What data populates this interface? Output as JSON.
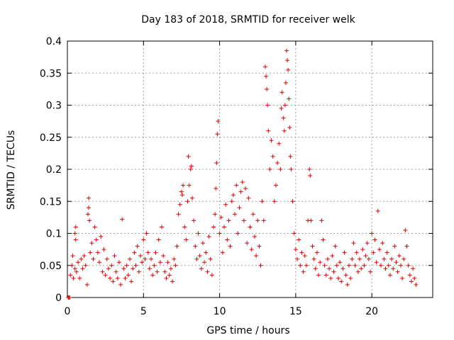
{
  "chart_data": {
    "type": "scatter",
    "title": "Day 183 of 2018, SRMTID for receiver welk",
    "xlabel": "GPS time / hours",
    "ylabel": "SRMTID / TECUs",
    "xlim": [
      0,
      24
    ],
    "ylim": [
      0,
      0.4
    ],
    "x_ticks": [
      0,
      5,
      10,
      15,
      20
    ],
    "x_tick_labels": [
      "0",
      "5",
      "10",
      "15",
      "20"
    ],
    "y_ticks": [
      0,
      0.05,
      0.1,
      0.15,
      0.2,
      0.25,
      0.3,
      0.35,
      0.4
    ],
    "y_tick_labels": [
      "0",
      "0.05",
      "0.1",
      "0.15",
      "0.2",
      "0.25",
      "0.3",
      "0.35",
      "0.4"
    ],
    "grid": true,
    "marker": "+",
    "color": "#e00000",
    "series": [
      {
        "name": "SRMTID",
        "points": [
          [
            0.05,
            0.0
          ],
          [
            0.1,
            0.0
          ],
          [
            0.15,
            0.0
          ],
          [
            0.2,
            0.035
          ],
          [
            0.3,
            0.05
          ],
          [
            0.35,
            0.065
          ],
          [
            0.4,
            0.03
          ],
          [
            0.5,
            0.045
          ],
          [
            0.5,
            0.1
          ],
          [
            0.55,
            0.09
          ],
          [
            0.55,
            0.11
          ],
          [
            0.6,
            0.04
          ],
          [
            0.7,
            0.055
          ],
          [
            0.8,
            0.03
          ],
          [
            0.9,
            0.06
          ],
          [
            1.0,
            0.045
          ],
          [
            1.1,
            0.065
          ],
          [
            1.2,
            0.05
          ],
          [
            1.3,
            0.02
          ],
          [
            1.35,
            0.13
          ],
          [
            1.4,
            0.155
          ],
          [
            1.4,
            0.14
          ],
          [
            1.45,
            0.12
          ],
          [
            1.5,
            0.07
          ],
          [
            1.6,
            0.085
          ],
          [
            1.7,
            0.06
          ],
          [
            1.8,
            0.11
          ],
          [
            1.9,
            0.09
          ],
          [
            2.0,
            0.07
          ],
          [
            2.1,
            0.055
          ],
          [
            2.2,
            0.095
          ],
          [
            2.3,
            0.04
          ],
          [
            2.4,
            0.075
          ],
          [
            2.5,
            0.035
          ],
          [
            2.6,
            0.06
          ],
          [
            2.7,
            0.045
          ],
          [
            2.8,
            0.03
          ],
          [
            2.9,
            0.05
          ],
          [
            3.0,
            0.025
          ],
          [
            3.1,
            0.065
          ],
          [
            3.2,
            0.04
          ],
          [
            3.3,
            0.03
          ],
          [
            3.4,
            0.055
          ],
          [
            3.5,
            0.02
          ],
          [
            3.6,
            0.122
          ],
          [
            3.7,
            0.045
          ],
          [
            3.8,
            0.03
          ],
          [
            3.9,
            0.05
          ],
          [
            4.0,
            0.035
          ],
          [
            4.1,
            0.06
          ],
          [
            4.2,
            0.025
          ],
          [
            4.3,
            0.045
          ],
          [
            4.4,
            0.07
          ],
          [
            4.5,
            0.05
          ],
          [
            4.6,
            0.08
          ],
          [
            4.7,
            0.04
          ],
          [
            4.8,
            0.065
          ],
          [
            4.9,
            0.055
          ],
          [
            5.0,
            0.09
          ],
          [
            5.1,
            0.06
          ],
          [
            5.2,
            0.1
          ],
          [
            5.3,
            0.07
          ],
          [
            5.4,
            0.045
          ],
          [
            5.5,
            0.06
          ],
          [
            5.6,
            0.035
          ],
          [
            5.7,
            0.05
          ],
          [
            5.8,
            0.07
          ],
          [
            5.9,
            0.04
          ],
          [
            6.0,
            0.09
          ],
          [
            6.1,
            0.055
          ],
          [
            6.2,
            0.11
          ],
          [
            6.3,
            0.065
          ],
          [
            6.4,
            0.04
          ],
          [
            6.5,
            0.03
          ],
          [
            6.6,
            0.055
          ],
          [
            6.7,
            0.035
          ],
          [
            6.8,
            0.045
          ],
          [
            6.9,
            0.025
          ],
          [
            7.0,
            0.06
          ],
          [
            7.1,
            0.05
          ],
          [
            7.2,
            0.08
          ],
          [
            7.3,
            0.13
          ],
          [
            7.4,
            0.145
          ],
          [
            7.5,
            0.165
          ],
          [
            7.55,
            0.16
          ],
          [
            7.6,
            0.175
          ],
          [
            7.7,
            0.11
          ],
          [
            7.8,
            0.09
          ],
          [
            7.9,
            0.15
          ],
          [
            7.95,
            0.22
          ],
          [
            8.0,
            0.175
          ],
          [
            8.1,
            0.2
          ],
          [
            8.15,
            0.205
          ],
          [
            8.2,
            0.155
          ],
          [
            8.3,
            0.12
          ],
          [
            8.4,
            0.08
          ],
          [
            8.5,
            0.06
          ],
          [
            8.6,
            0.1
          ],
          [
            8.7,
            0.065
          ],
          [
            8.8,
            0.045
          ],
          [
            8.9,
            0.085
          ],
          [
            9.0,
            0.055
          ],
          [
            9.1,
            0.07
          ],
          [
            9.2,
            0.04
          ],
          [
            9.3,
            0.095
          ],
          [
            9.4,
            0.06
          ],
          [
            9.5,
            0.035
          ],
          [
            9.6,
            0.11
          ],
          [
            9.7,
            0.13
          ],
          [
            9.75,
            0.17
          ],
          [
            9.8,
            0.21
          ],
          [
            9.85,
            0.255
          ],
          [
            9.9,
            0.275
          ],
          [
            10.0,
            0.1
          ],
          [
            10.1,
            0.125
          ],
          [
            10.2,
            0.07
          ],
          [
            10.3,
            0.11
          ],
          [
            10.4,
            0.145
          ],
          [
            10.5,
            0.09
          ],
          [
            10.6,
            0.12
          ],
          [
            10.7,
            0.08
          ],
          [
            10.8,
            0.15
          ],
          [
            10.9,
            0.16
          ],
          [
            11.0,
            0.13
          ],
          [
            11.1,
            0.175
          ],
          [
            11.2,
            0.1
          ],
          [
            11.3,
            0.14
          ],
          [
            11.4,
            0.165
          ],
          [
            11.5,
            0.18
          ],
          [
            11.6,
            0.12
          ],
          [
            11.7,
            0.17
          ],
          [
            11.8,
            0.085
          ],
          [
            11.9,
            0.155
          ],
          [
            12.0,
            0.11
          ],
          [
            12.1,
            0.075
          ],
          [
            12.2,
            0.13
          ],
          [
            12.3,
            0.095
          ],
          [
            12.4,
            0.065
          ],
          [
            12.5,
            0.12
          ],
          [
            12.6,
            0.08
          ],
          [
            12.7,
            0.05
          ],
          [
            12.8,
            0.15
          ],
          [
            12.9,
            0.12
          ],
          [
            13.0,
            0.36
          ],
          [
            13.05,
            0.345
          ],
          [
            13.1,
            0.325
          ],
          [
            13.15,
            0.3
          ],
          [
            13.2,
            0.26
          ],
          [
            13.3,
            0.2
          ],
          [
            13.4,
            0.245
          ],
          [
            13.5,
            0.22
          ],
          [
            13.6,
            0.15
          ],
          [
            13.7,
            0.175
          ],
          [
            13.8,
            0.21
          ],
          [
            13.9,
            0.24
          ],
          [
            14.0,
            0.2
          ],
          [
            14.05,
            0.295
          ],
          [
            14.1,
            0.32
          ],
          [
            14.2,
            0.28
          ],
          [
            14.25,
            0.26
          ],
          [
            14.3,
            0.3
          ],
          [
            14.35,
            0.335
          ],
          [
            14.4,
            0.385
          ],
          [
            14.45,
            0.37
          ],
          [
            14.5,
            0.355
          ],
          [
            14.55,
            0.31
          ],
          [
            14.6,
            0.265
          ],
          [
            14.65,
            0.22
          ],
          [
            14.7,
            0.2
          ],
          [
            14.8,
            0.15
          ],
          [
            14.9,
            0.1
          ],
          [
            15.0,
            0.075
          ],
          [
            15.1,
            0.06
          ],
          [
            15.2,
            0.09
          ],
          [
            15.3,
            0.05
          ],
          [
            15.4,
            0.07
          ],
          [
            15.5,
            0.04
          ],
          [
            15.6,
            0.065
          ],
          [
            15.7,
            0.05
          ],
          [
            15.8,
            0.12
          ],
          [
            15.9,
            0.2
          ],
          [
            15.95,
            0.19
          ],
          [
            16.0,
            0.12
          ],
          [
            16.1,
            0.08
          ],
          [
            16.2,
            0.06
          ],
          [
            16.3,
            0.045
          ],
          [
            16.4,
            0.07
          ],
          [
            16.5,
            0.035
          ],
          [
            16.6,
            0.055
          ],
          [
            16.7,
            0.12
          ],
          [
            16.8,
            0.09
          ],
          [
            16.9,
            0.05
          ],
          [
            17.0,
            0.035
          ],
          [
            17.1,
            0.06
          ],
          [
            17.2,
            0.045
          ],
          [
            17.3,
            0.03
          ],
          [
            17.4,
            0.065
          ],
          [
            17.5,
            0.04
          ],
          [
            17.6,
            0.08
          ],
          [
            17.7,
            0.05
          ],
          [
            17.8,
            0.03
          ],
          [
            17.9,
            0.055
          ],
          [
            18.0,
            0.025
          ],
          [
            18.1,
            0.045
          ],
          [
            18.2,
            0.07
          ],
          [
            18.3,
            0.035
          ],
          [
            18.4,
            0.02
          ],
          [
            18.5,
            0.05
          ],
          [
            18.6,
            0.03
          ],
          [
            18.7,
            0.06
          ],
          [
            18.8,
            0.085
          ],
          [
            18.9,
            0.05
          ],
          [
            19.0,
            0.07
          ],
          [
            19.1,
            0.04
          ],
          [
            19.2,
            0.06
          ],
          [
            19.3,
            0.045
          ],
          [
            19.4,
            0.075
          ],
          [
            19.5,
            0.05
          ],
          [
            19.6,
            0.065
          ],
          [
            19.7,
            0.085
          ],
          [
            19.8,
            0.06
          ],
          [
            19.9,
            0.04
          ],
          [
            20.0,
            0.1
          ],
          [
            20.1,
            0.07
          ],
          [
            20.2,
            0.09
          ],
          [
            20.3,
            0.055
          ],
          [
            20.4,
            0.135
          ],
          [
            20.5,
            0.075
          ],
          [
            20.6,
            0.05
          ],
          [
            20.7,
            0.085
          ],
          [
            20.8,
            0.06
          ],
          [
            20.9,
            0.045
          ],
          [
            21.0,
            0.07
          ],
          [
            21.1,
            0.05
          ],
          [
            21.2,
            0.035
          ],
          [
            21.3,
            0.06
          ],
          [
            21.4,
            0.045
          ],
          [
            21.5,
            0.08
          ],
          [
            21.6,
            0.055
          ],
          [
            21.7,
            0.04
          ],
          [
            21.8,
            0.065
          ],
          [
            21.9,
            0.05
          ],
          [
            22.0,
            0.03
          ],
          [
            22.1,
            0.06
          ],
          [
            22.2,
            0.105
          ],
          [
            22.3,
            0.08
          ],
          [
            22.4,
            0.05
          ],
          [
            22.5,
            0.035
          ],
          [
            22.6,
            0.025
          ],
          [
            22.7,
            0.045
          ],
          [
            22.8,
            0.03
          ],
          [
            22.9,
            0.02
          ]
        ]
      }
    ]
  }
}
